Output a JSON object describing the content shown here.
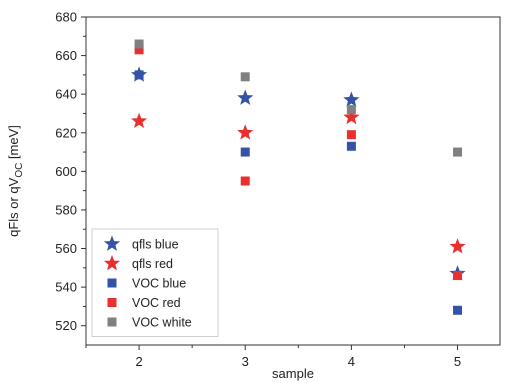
{
  "chart_data": {
    "type": "scatter",
    "xlabel": "sample",
    "ylabel_main": "qFls or qV",
    "ylabel_sub": "OC",
    "ylabel_unit": " [meV]",
    "xlim": [
      1.5,
      5.4
    ],
    "ylim": [
      510,
      680
    ],
    "x_ticks": [
      2,
      3,
      4,
      5
    ],
    "y_ticks": [
      520,
      540,
      560,
      580,
      600,
      620,
      640,
      660,
      680
    ],
    "legend_position": "bottom-left",
    "grid": false,
    "series": [
      {
        "name": "qfls blue",
        "marker": "star",
        "color": "#3553a6",
        "x": [
          2,
          3,
          4,
          5
        ],
        "y": [
          650,
          638,
          637,
          547
        ]
      },
      {
        "name": "qfls red",
        "marker": "star",
        "color": "#e8302e",
        "x": [
          2,
          3,
          4,
          5
        ],
        "y": [
          626,
          620,
          628,
          561
        ]
      },
      {
        "name": "VOC blue",
        "marker": "square",
        "color": "#3553a6",
        "x": [
          2,
          3,
          4,
          5
        ],
        "y": [
          650,
          610,
          613,
          528
        ]
      },
      {
        "name": "VOC red",
        "marker": "square",
        "color": "#e8302e",
        "x": [
          2,
          3,
          4,
          5
        ],
        "y": [
          663,
          595,
          619,
          546
        ]
      },
      {
        "name": "VOC white",
        "marker": "square",
        "color": "#808080",
        "x": [
          2,
          3,
          4,
          5
        ],
        "y": [
          666,
          649,
          632,
          610
        ]
      }
    ]
  }
}
